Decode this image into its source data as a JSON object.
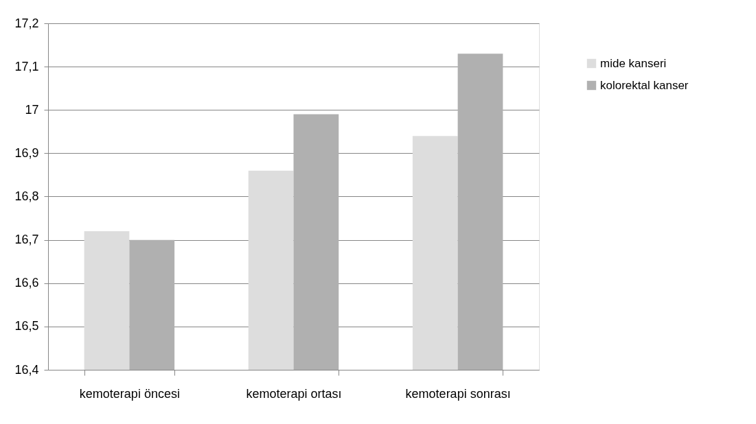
{
  "chart_data": {
    "type": "bar",
    "categories": [
      "kemoterapi öncesi",
      "kemoterapi ortası",
      "kemoterapi sonrası"
    ],
    "series": [
      {
        "name": "mide kanseri",
        "color": "#dddddd",
        "values": [
          16.72,
          16.86,
          16.94
        ]
      },
      {
        "name": "kolorektal kanser",
        "color": "#b0b0b0",
        "values": [
          16.7,
          16.99,
          17.13
        ]
      }
    ],
    "ylim": [
      16.4,
      17.2
    ],
    "yticks": [
      {
        "value": 16.4,
        "label": "16,4"
      },
      {
        "value": 16.5,
        "label": "16,5"
      },
      {
        "value": 16.6,
        "label": "16,6"
      },
      {
        "value": 16.7,
        "label": "16,7"
      },
      {
        "value": 16.8,
        "label": "16,8"
      },
      {
        "value": 16.9,
        "label": "16,9"
      },
      17,
      {
        "value": 17.1,
        "label": "17,1"
      },
      {
        "value": 17.2,
        "label": "17,2"
      }
    ],
    "grid": "y",
    "legend": "right"
  }
}
